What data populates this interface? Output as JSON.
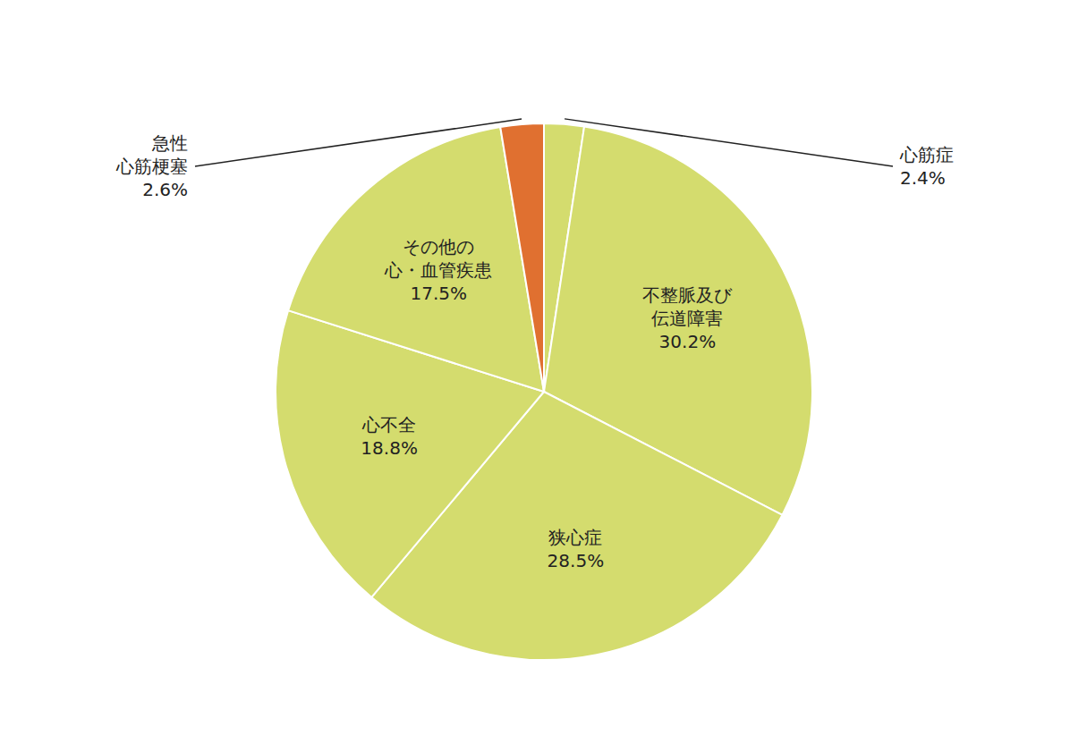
{
  "chart_data": {
    "type": "pie",
    "categories": [
      "心筋症",
      "不整脈及び\n伝道障害",
      "狭心症",
      "心不全",
      "その他の\n心・血管疾患",
      "急性\n心筋梗塞"
    ],
    "values": [
      2.4,
      30.2,
      28.5,
      18.8,
      17.5,
      2.6
    ],
    "value_labels": [
      "2.4%",
      "30.2%",
      "28.5%",
      "18.8%",
      "17.5%",
      "2.6%"
    ],
    "colors": [
      "#d4dc6e",
      "#d4dc6e",
      "#d4dc6e",
      "#d4dc6e",
      "#d4dc6e",
      "#e07030"
    ],
    "data_labels": true
  }
}
